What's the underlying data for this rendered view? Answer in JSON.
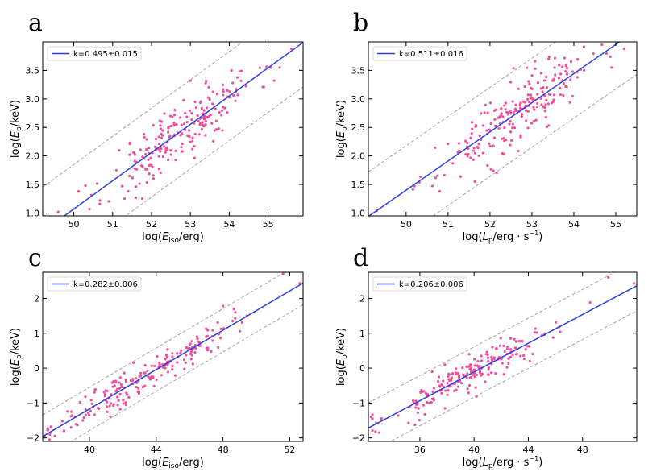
{
  "chart_data": [
    {
      "type": "scatter",
      "panel_label": "a",
      "xlabel": "log(Eiso/erg)",
      "ylabel": "log(Ep/keV)",
      "xlim": [
        49.2,
        55.9
      ],
      "ylim": [
        0.95,
        4.0
      ],
      "xticks": [
        50,
        51,
        52,
        53,
        54,
        55
      ],
      "xtick_labels": [
        "50",
        "51",
        "52",
        "53",
        "54",
        "55"
      ],
      "yticks": [
        1.0,
        1.5,
        2.0,
        2.5,
        3.0,
        3.5
      ],
      "ytick_labels": [
        "1.0",
        "1.5",
        "2.0",
        "2.5",
        "3.0",
        "3.5"
      ],
      "legend": "k=0.495±0.015",
      "fit": {
        "slope": 0.495,
        "intercept": -23.68
      },
      "band_offset": 0.78,
      "points": {
        "x_mean": 52.8,
        "x_sd": 0.95,
        "scatter": 0.28,
        "count": 220,
        "seed": 11
      },
      "extra_points": [
        [
          49.6,
          1.02
        ],
        [
          50.3,
          1.48
        ],
        [
          51.4,
          1.38
        ],
        [
          55.3,
          3.55
        ],
        [
          55.6,
          3.88
        ]
      ]
    },
    {
      "type": "scatter",
      "panel_label": "b",
      "xlabel": "log(Lp/erg·s−1)",
      "ylabel": "log(Ep/keV)",
      "xlim": [
        49.1,
        55.5
      ],
      "ylim": [
        0.95,
        4.0
      ],
      "xticks": [
        50,
        51,
        52,
        53,
        54,
        55
      ],
      "xtick_labels": [
        "50",
        "51",
        "52",
        "53",
        "54",
        "55"
      ],
      "yticks": [
        1.0,
        1.5,
        2.0,
        2.5,
        3.0,
        3.5
      ],
      "ytick_labels": [
        "1.0",
        "1.5",
        "2.0",
        "2.5",
        "3.0",
        "3.5"
      ],
      "legend": "k=0.511±0.016",
      "fit": {
        "slope": 0.511,
        "intercept": -24.15
      },
      "band_offset": 0.78,
      "points": {
        "x_mean": 52.6,
        "x_sd": 0.9,
        "scatter": 0.27,
        "count": 220,
        "seed": 23
      },
      "extra_points": [
        [
          49.3,
          1.04
        ],
        [
          50.2,
          1.47
        ],
        [
          50.8,
          1.38
        ],
        [
          54.9,
          3.55
        ],
        [
          55.2,
          3.88
        ]
      ]
    },
    {
      "type": "scatter",
      "panel_label": "c",
      "xlabel": "log(Eiso/erg)",
      "ylabel": "log(Ep/keV)",
      "xlim": [
        37.2,
        52.8
      ],
      "ylim": [
        -2.1,
        2.75
      ],
      "xticks": [
        40,
        44,
        48,
        52
      ],
      "xtick_labels": [
        "40",
        "44",
        "48",
        "52"
      ],
      "yticks": [
        -2,
        -1,
        0,
        1,
        2
      ],
      "ytick_labels": [
        "−2",
        "−1",
        "0",
        "1",
        "2"
      ],
      "legend": "k=0.282±0.006",
      "fit": {
        "slope": 0.282,
        "intercept": -12.45
      },
      "band_offset": 0.62,
      "points": {
        "x_mean": 43.2,
        "x_sd": 2.6,
        "scatter": 0.24,
        "count": 200,
        "seed": 37
      },
      "extra_points": [
        [
          37.3,
          -1.95
        ],
        [
          37.6,
          -2.05
        ],
        [
          48.0,
          1.78
        ],
        [
          51.6,
          2.7
        ],
        [
          52.6,
          2.43
        ]
      ]
    },
    {
      "type": "scatter",
      "panel_label": "d",
      "xlabel": "log(Lp/erg·s−1)",
      "ylabel": "log(Ep/keV)",
      "xlim": [
        32.2,
        52.0
      ],
      "ylim": [
        -2.1,
        2.75
      ],
      "xticks": [
        36,
        40,
        44,
        48
      ],
      "xtick_labels": [
        "36",
        "40",
        "44",
        "48"
      ],
      "yticks": [
        -2,
        -1,
        0,
        1,
        2
      ],
      "ytick_labels": [
        "−2",
        "−1",
        "0",
        "1",
        "2"
      ],
      "legend": "k=0.206±0.006",
      "fit": {
        "slope": 0.206,
        "intercept": -8.35
      },
      "band_offset": 0.72,
      "points": {
        "x_mean": 39.8,
        "x_sd": 3.2,
        "scatter": 0.26,
        "count": 200,
        "seed": 53
      },
      "extra_points": [
        [
          32.4,
          -1.4
        ],
        [
          33.0,
          -1.85
        ],
        [
          49.9,
          2.6
        ],
        [
          51.8,
          2.43
        ]
      ]
    }
  ],
  "colors": {
    "points": "#f0509b",
    "fit_line": "#2f3fe0",
    "band_line": "#9a9a9a"
  }
}
